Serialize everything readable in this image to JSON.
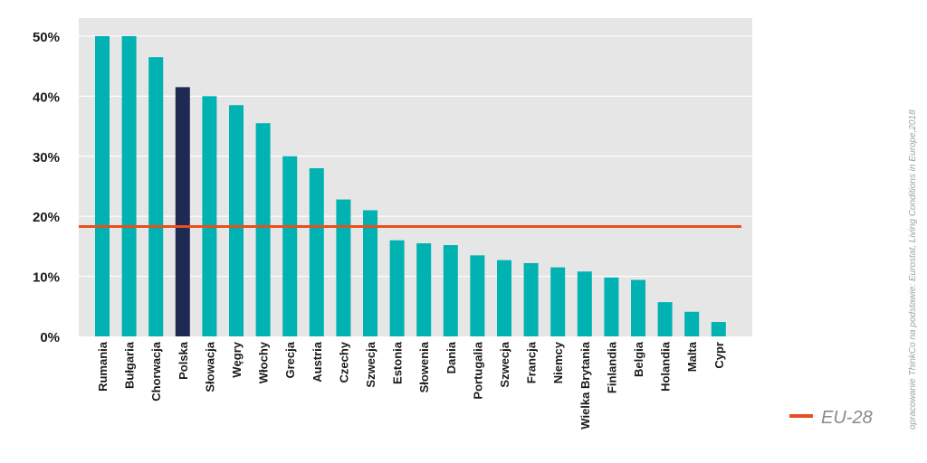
{
  "chart_data": {
    "type": "bar",
    "categories": [
      "Rumania",
      "Bułgaria",
      "Chorwacja",
      "Polska",
      "Słowacja",
      "Węgry",
      "Włochy",
      "Grecja",
      "Austria",
      "Czechy",
      "Szwecja",
      "Estonia",
      "Słowenia",
      "Dania",
      "Portugalia",
      "Szwecja",
      "Francja",
      "Niemcy",
      "Wielka Brytania",
      "Finlandia",
      "Belgia",
      "Holandia",
      "Malta",
      "Cypr"
    ],
    "values": [
      50,
      50,
      46.5,
      41.5,
      40,
      38.5,
      35.5,
      30,
      28,
      22.8,
      21,
      16,
      15.5,
      15.2,
      13.5,
      12.7,
      12.2,
      11.5,
      10.8,
      9.8,
      9.4,
      5.7,
      4.1,
      2.4
    ],
    "highlight_category": "Polska",
    "reference_line": {
      "name": "EU-28",
      "value": 18.3
    },
    "ylim": [
      0,
      53
    ],
    "yticks": [
      0,
      10,
      20,
      30,
      40,
      50
    ],
    "ytick_labels": [
      "0%",
      "10%",
      "20%",
      "30%",
      "40%",
      "50%"
    ],
    "title": "",
    "xlabel": "",
    "ylabel": "",
    "grid": true,
    "legend": {
      "position": "bottom-right",
      "entries": [
        "EU-28"
      ]
    },
    "source_note": "opracowanie ThinkCo na podstawie: Eurostat, Living Conditions in Europe,2018"
  },
  "colors": {
    "bar": "#00b2b1",
    "highlight_bar": "#1f2a52",
    "reference_line": "#e8501d",
    "plot_background": "#e6e6e6",
    "grid": "#ffffff"
  }
}
